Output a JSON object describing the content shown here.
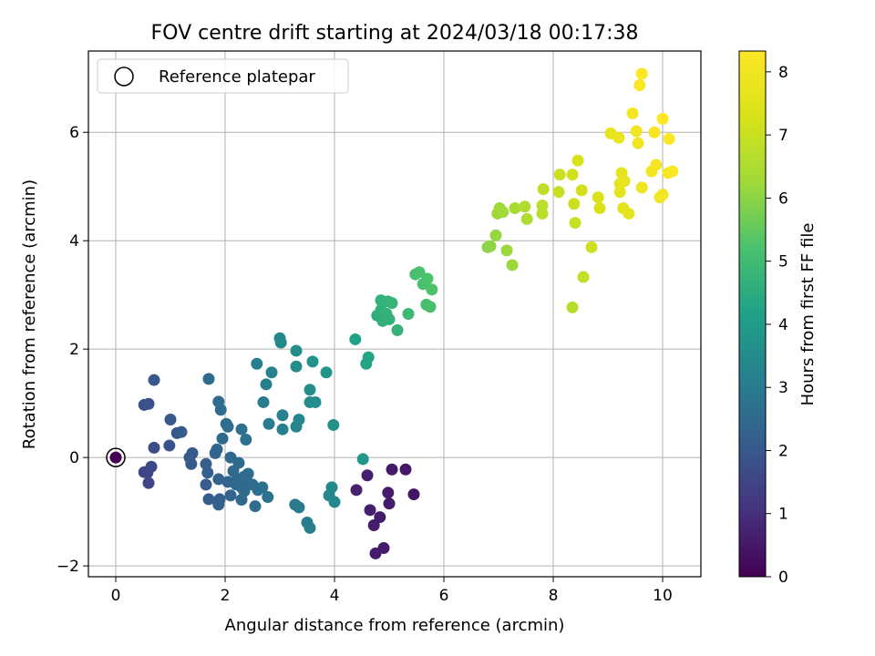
{
  "chart_data": {
    "type": "scatter",
    "title": "FOV centre drift starting at 2024/03/18 00:17:38",
    "xlabel": "Angular distance from reference (arcmin)",
    "ylabel": "Rotation from reference (arcmin)",
    "xlim": [
      -0.5,
      10.7
    ],
    "ylim": [
      -2.2,
      7.5
    ],
    "xticks": [
      0,
      2,
      4,
      6,
      8,
      10
    ],
    "xtick_labels": [
      "0",
      "2",
      "4",
      "6",
      "8",
      "10"
    ],
    "yticks": [
      -2,
      0,
      2,
      4,
      6
    ],
    "ytick_labels": [
      "−2",
      "0",
      "2",
      "4",
      "6"
    ],
    "grid": true,
    "legend": {
      "position": "top-left",
      "entries": [
        "Reference platepar"
      ]
    },
    "reference_point": {
      "x": 0,
      "y": 0
    },
    "colorbar": {
      "label": "Hours from first FF file",
      "colormap": "viridis",
      "range": [
        0,
        8.33
      ],
      "ticks": [
        0,
        1,
        2,
        3,
        4,
        5,
        6,
        7,
        8
      ],
      "tick_labels": [
        "0",
        "1",
        "2",
        "3",
        "4",
        "5",
        "6",
        "7",
        "8"
      ]
    },
    "series": [
      {
        "name": "FOV centre drift",
        "points": [
          [
            4.75,
            -1.77
          ],
          [
            4.9,
            -1.67
          ],
          [
            4.72,
            -1.25
          ],
          [
            4.83,
            -1.1
          ],
          [
            4.65,
            -0.97
          ],
          [
            5.0,
            -0.85
          ],
          [
            4.98,
            -0.65
          ],
          [
            4.4,
            -0.6
          ],
          [
            4.6,
            -0.33
          ],
          [
            4.52,
            -0.03
          ],
          [
            5.05,
            -0.22
          ],
          [
            5.3,
            -0.22
          ],
          [
            5.45,
            -0.68
          ],
          [
            3.55,
            -1.3
          ],
          [
            3.5,
            -1.2
          ],
          [
            3.35,
            -0.92
          ],
          [
            3.28,
            -0.87
          ],
          [
            3.95,
            -0.55
          ],
          [
            4.0,
            -0.82
          ],
          [
            3.9,
            -0.7
          ],
          [
            2.55,
            -0.9
          ],
          [
            2.3,
            -0.78
          ],
          [
            2.1,
            -0.7
          ],
          [
            1.88,
            -0.87
          ],
          [
            1.9,
            -0.77
          ],
          [
            1.7,
            -0.77
          ],
          [
            2.78,
            -0.73
          ],
          [
            2.68,
            -0.55
          ],
          [
            2.6,
            -0.6
          ],
          [
            2.42,
            -0.3
          ],
          [
            2.35,
            -0.35
          ],
          [
            2.22,
            -0.4
          ],
          [
            2.15,
            -0.25
          ],
          [
            2.1,
            0.0
          ],
          [
            2.25,
            -0.1
          ],
          [
            2.05,
            -0.45
          ],
          [
            2.5,
            -0.5
          ],
          [
            2.4,
            -0.45
          ],
          [
            2.3,
            -0.55
          ],
          [
            2.2,
            -0.5
          ],
          [
            2.35,
            -0.62
          ],
          [
            1.88,
            -0.4
          ],
          [
            1.65,
            -0.5
          ],
          [
            1.68,
            -0.28
          ],
          [
            1.65,
            -0.12
          ],
          [
            1.38,
            -0.12
          ],
          [
            1.4,
            0.08
          ],
          [
            1.82,
            0.08
          ],
          [
            1.85,
            0.15
          ],
          [
            1.35,
            0.0
          ],
          [
            0.6,
            -0.47
          ],
          [
            0.52,
            -0.27
          ],
          [
            0.65,
            -0.17
          ],
          [
            0.58,
            -0.28
          ],
          [
            0.52,
            0.97
          ],
          [
            0.6,
            0.99
          ],
          [
            0.7,
            0.18
          ],
          [
            0.98,
            0.22
          ],
          [
            1.0,
            0.7
          ],
          [
            1.12,
            0.45
          ],
          [
            1.2,
            0.47
          ],
          [
            0.7,
            1.43
          ],
          [
            1.7,
            1.45
          ],
          [
            1.88,
            1.03
          ],
          [
            1.92,
            0.88
          ],
          [
            2.02,
            0.62
          ],
          [
            2.05,
            0.57
          ],
          [
            1.95,
            0.35
          ],
          [
            2.3,
            0.52
          ],
          [
            2.38,
            0.33
          ],
          [
            2.58,
            1.73
          ],
          [
            2.7,
            1.02
          ],
          [
            2.75,
            1.35
          ],
          [
            2.8,
            0.62
          ],
          [
            2.85,
            1.57
          ],
          [
            3.0,
            2.2
          ],
          [
            3.02,
            2.12
          ],
          [
            3.05,
            0.78
          ],
          [
            3.05,
            0.52
          ],
          [
            3.3,
            0.57
          ],
          [
            3.3,
            1.97
          ],
          [
            3.3,
            1.68
          ],
          [
            3.35,
            0.7
          ],
          [
            3.55,
            1.25
          ],
          [
            3.55,
            1.02
          ],
          [
            3.6,
            1.77
          ],
          [
            3.65,
            1.02
          ],
          [
            3.85,
            1.57
          ],
          [
            3.98,
            0.6
          ],
          [
            4.38,
            2.18
          ],
          [
            4.58,
            1.73
          ],
          [
            4.62,
            1.85
          ],
          [
            4.78,
            2.62
          ],
          [
            4.85,
            2.72
          ],
          [
            4.85,
            2.9
          ],
          [
            4.88,
            2.52
          ],
          [
            4.95,
            2.65
          ],
          [
            4.98,
            2.88
          ],
          [
            5.0,
            2.55
          ],
          [
            5.05,
            2.85
          ],
          [
            5.15,
            2.35
          ],
          [
            5.35,
            2.65
          ],
          [
            5.48,
            3.38
          ],
          [
            5.55,
            3.42
          ],
          [
            5.62,
            3.2
          ],
          [
            5.7,
            3.3
          ],
          [
            5.68,
            2.82
          ],
          [
            5.75,
            2.78
          ],
          [
            5.78,
            3.1
          ],
          [
            6.8,
            3.88
          ],
          [
            6.85,
            3.9
          ],
          [
            6.95,
            4.1
          ],
          [
            6.98,
            4.5
          ],
          [
            7.02,
            4.6
          ],
          [
            7.08,
            4.53
          ],
          [
            7.15,
            3.82
          ],
          [
            7.25,
            3.55
          ],
          [
            7.3,
            4.6
          ],
          [
            7.48,
            4.63
          ],
          [
            7.52,
            4.4
          ],
          [
            7.8,
            4.5
          ],
          [
            7.8,
            4.65
          ],
          [
            7.82,
            4.95
          ],
          [
            8.1,
            4.9
          ],
          [
            8.12,
            5.22
          ],
          [
            8.35,
            5.22
          ],
          [
            8.38,
            4.68
          ],
          [
            8.4,
            4.33
          ],
          [
            8.35,
            2.77
          ],
          [
            8.45,
            5.48
          ],
          [
            8.52,
            4.93
          ],
          [
            8.55,
            3.33
          ],
          [
            8.7,
            3.88
          ],
          [
            8.82,
            4.8
          ],
          [
            8.85,
            4.6
          ],
          [
            9.05,
            5.98
          ],
          [
            9.22,
            4.9
          ],
          [
            9.22,
            5.05
          ],
          [
            9.25,
            5.25
          ],
          [
            9.28,
            4.6
          ],
          [
            9.3,
            5.1
          ],
          [
            9.38,
            4.5
          ],
          [
            9.2,
            5.9
          ],
          [
            9.45,
            6.35
          ],
          [
            9.52,
            6.02
          ],
          [
            9.55,
            5.8
          ],
          [
            9.58,
            6.87
          ],
          [
            9.62,
            7.08
          ],
          [
            9.62,
            4.98
          ],
          [
            9.8,
            5.28
          ],
          [
            9.85,
            6.0
          ],
          [
            9.88,
            5.4
          ],
          [
            9.95,
            4.8
          ],
          [
            10.0,
            6.25
          ],
          [
            10.0,
            4.85
          ],
          [
            10.1,
            5.25
          ],
          [
            10.12,
            5.88
          ],
          [
            10.18,
            5.28
          ]
        ]
      }
    ]
  }
}
